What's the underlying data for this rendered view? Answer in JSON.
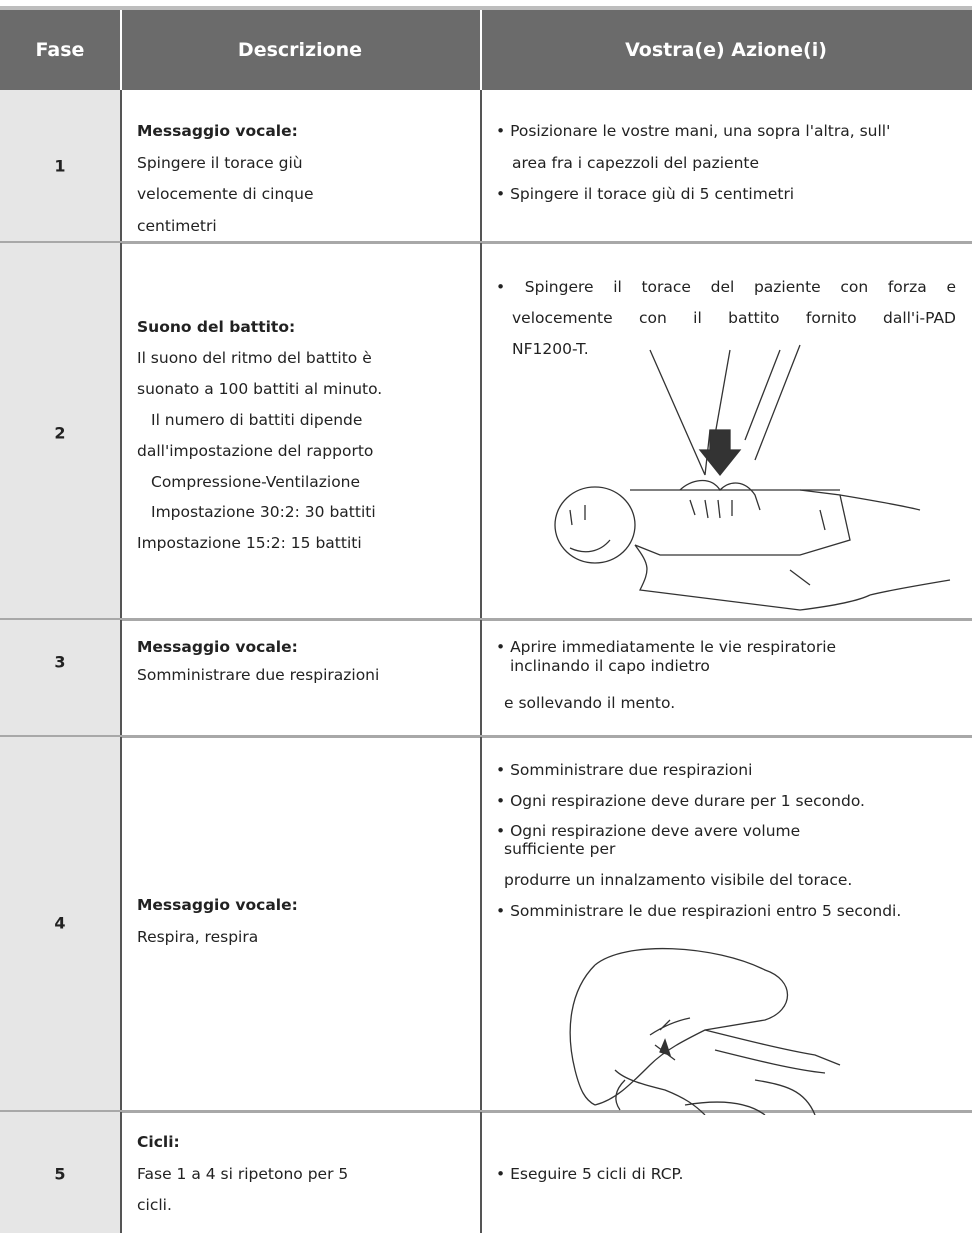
{
  "table": {
    "headers": [
      "Fase",
      "Descrizione",
      "Vostra(e) Azione(i)"
    ],
    "rows": [
      {
        "step": 1,
        "description": {
          "title": "Messaggio vocale:",
          "lines": [
            "Spingere il torace giù",
            "velocemente di cinque",
            "centimetri"
          ]
        },
        "actions": [
          "• Posizionare le vostre mani, una sopra l'altra, sull'",
          "area fra i capezzoli del paziente",
          "• Spingere il torace giù di 5 centimetri"
        ]
      },
      {
        "step": 2,
        "description": {
          "title": "Suono del battito:",
          "lines": [
            "Il suono del ritmo del battito è",
            "suonato a 100 battiti al minuto.",
            "Il numero di battiti dipende",
            "dall'impostazione del rapporto",
            "Compressione-Ventilazione",
            "Impostazione 30:2: 30 battiti",
            "Impostazione 15:2: 15 battiti"
          ]
        },
        "actions": [
          "• Spingere il torace del paziente con forza e",
          "velocemente con il battito fornito dall'i-PAD",
          "NF1200-T."
        ]
      },
      {
        "step": 3,
        "description": {
          "title": "Messaggio vocale:",
          "lines": [
            "Somministrare due respirazioni"
          ]
        },
        "actions": [
          "• Aprire immediatamente le vie respiratorie",
          "inclinando il capo indietro",
          "e sollevando il mento."
        ]
      },
      {
        "step": 4,
        "description": {
          "title": "Messaggio vocale:",
          "lines": [
            "Respira, respira"
          ]
        },
        "actions": [
          "• Somministrare due respirazioni",
          "• Ogni respirazione deve durare per 1 secondo.",
          "• Ogni respirazione deve avere volume",
          "sufficiente per",
          "produrre un innalzamento visibile del torace.",
          "• Somministrare le due respirazioni entro 5 secondi."
        ]
      },
      {
        "step": 5,
        "description": {
          "title": "Cicli:",
          "lines": [
            "Fase 1 a 4 si ripetono per 5",
            "cicli."
          ]
        },
        "actions": [
          "• Eseguire 5 cicli di RCP."
        ]
      }
    ]
  }
}
